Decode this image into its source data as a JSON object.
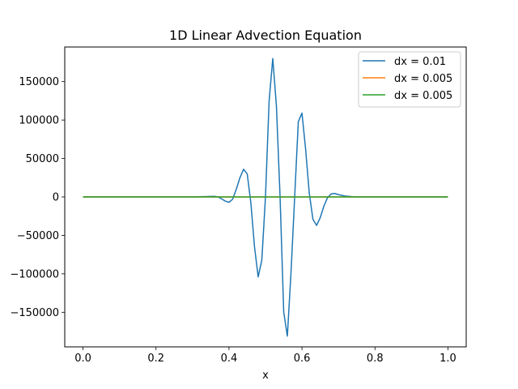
{
  "chart_data": {
    "type": "line",
    "title": "1D Linear Advection Equation",
    "xlabel": "x",
    "ylabel": "",
    "xlim": [
      -0.05,
      1.05
    ],
    "ylim": [
      -195000,
      195000
    ],
    "xticks": [
      0.0,
      0.2,
      0.4,
      0.6,
      0.8,
      1.0
    ],
    "xtick_labels": [
      "0.0",
      "0.2",
      "0.4",
      "0.6",
      "0.8",
      "1.0"
    ],
    "yticks": [
      -150000,
      -100000,
      -50000,
      0,
      50000,
      100000,
      150000
    ],
    "ytick_labels": [
      "−150000",
      "−100000",
      "−50000",
      "0",
      "50000",
      "100000",
      "150000"
    ],
    "grid": false,
    "legend_position": "top-right",
    "series": [
      {
        "name": "dx = 0.01",
        "color": "#1f77b4",
        "x": [
          0.0,
          0.3,
          0.34,
          0.36,
          0.37,
          0.38,
          0.39,
          0.4,
          0.41,
          0.42,
          0.43,
          0.44,
          0.45,
          0.46,
          0.47,
          0.48,
          0.49,
          0.5,
          0.51,
          0.52,
          0.53,
          0.54,
          0.55,
          0.56,
          0.57,
          0.58,
          0.59,
          0.6,
          0.61,
          0.62,
          0.63,
          0.64,
          0.65,
          0.66,
          0.67,
          0.68,
          0.69,
          0.7,
          0.72,
          0.74,
          0.76,
          1.0
        ],
        "y": [
          0,
          0,
          500,
          800,
          0,
          -2500,
          -5500,
          -7000,
          -3000,
          10000,
          25000,
          36000,
          30000,
          -8000,
          -65000,
          -104000,
          -82000,
          0,
          125000,
          180000,
          118000,
          0,
          -150000,
          -181000,
          -98000,
          0,
          98000,
          109000,
          62000,
          5000,
          -29000,
          -37000,
          -27000,
          -12000,
          -1000,
          4000,
          4500,
          3000,
          1000,
          300,
          0,
          0
        ]
      },
      {
        "name": "dx = 0.005",
        "color": "#ff7f0e",
        "x": [
          0.0,
          1.0
        ],
        "y": [
          0,
          0
        ]
      },
      {
        "name": "dx = 0.005",
        "color": "#2ca02c",
        "x": [
          0.0,
          1.0
        ],
        "y": [
          0,
          0
        ]
      }
    ]
  }
}
